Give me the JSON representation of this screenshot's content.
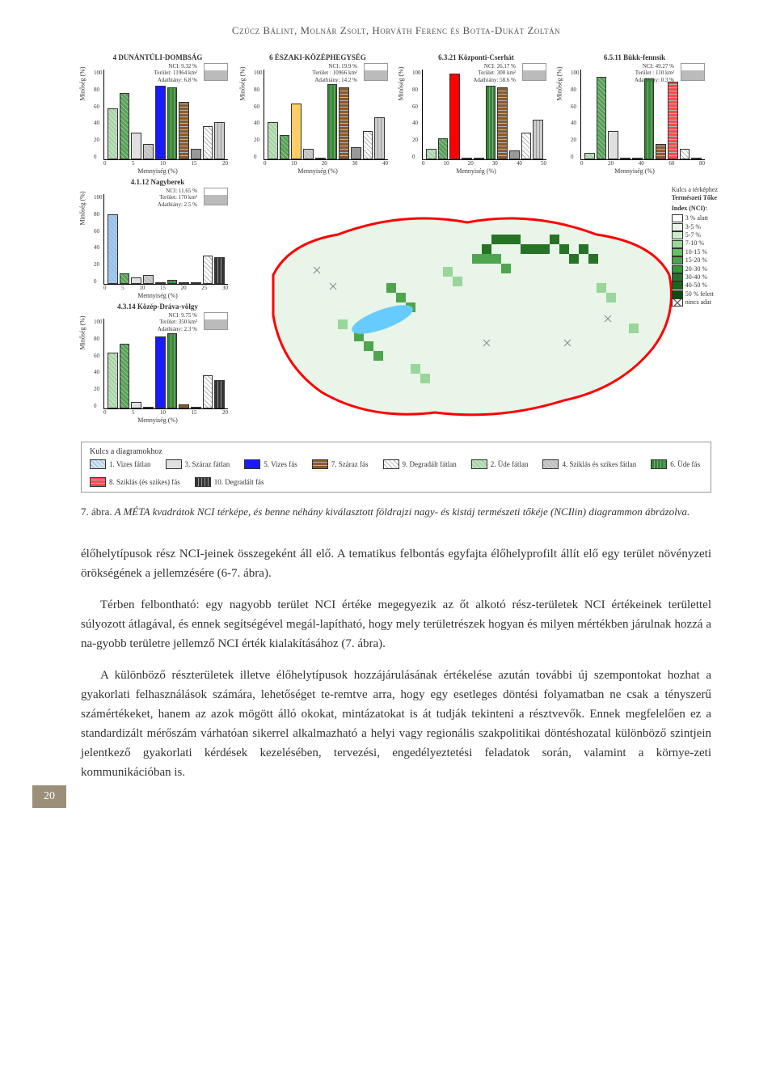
{
  "running_head": "Czúcz Bálint, Molnár Zsolt, Horváth Ferenc és Botta-Dukát Zoltán",
  "page_number": "20",
  "figure": {
    "charts": {
      "type": "bar",
      "ylabel": "Minőség (%)",
      "xlabel": "Mennyiség (%)",
      "ylim": [
        0,
        100
      ],
      "ytick_step": 20,
      "background_color": "#ffffff",
      "panels": [
        {
          "title": "4 DUNÁNTÚLI-DOMBSÁG",
          "nci": "NCI: 9.32 %",
          "terulet": "Terület: 11964 km²",
          "adath": "Adathiány: 6.8 %",
          "xlim": [
            0,
            20
          ],
          "xticks": [
            0,
            5,
            10,
            15,
            20
          ],
          "bars": [
            {
              "h": 55,
              "c": "#b3e6b3",
              "hatch": "diag"
            },
            {
              "h": 72,
              "c": "#4da64d",
              "hatch": "diag"
            },
            {
              "h": 28,
              "c": "#e0e0e0",
              "hatch": "none"
            },
            {
              "h": 15,
              "c": "#cccccc",
              "hatch": "diag"
            },
            {
              "h": 80,
              "c": "#1a1aff",
              "hatch": "none"
            },
            {
              "h": 78,
              "c": "#2e8b2e",
              "hatch": "vert"
            },
            {
              "h": 62,
              "c": "#8b5a2b",
              "hatch": "horiz"
            },
            {
              "h": 10,
              "c": "#999999",
              "hatch": "none"
            },
            {
              "h": 35,
              "c": "#ffffff",
              "hatch": "diag"
            },
            {
              "h": 40,
              "c": "#cccccc",
              "hatch": "vert"
            }
          ]
        },
        {
          "title": "6 ÉSZAKI-KÖZÉPHEGYSÉG",
          "nci": "NCI: 19.9 %",
          "terulet": "Terület : 10966 km²",
          "adath": "Adathiány: 14.2 %",
          "xlim": [
            0,
            40
          ],
          "xticks": [
            0,
            10,
            20,
            30,
            40
          ],
          "bars": [
            {
              "h": 40,
              "c": "#b3e6b3",
              "hatch": "diag"
            },
            {
              "h": 25,
              "c": "#4da64d",
              "hatch": "diag"
            },
            {
              "h": 60,
              "c": "#ffcc66",
              "hatch": "none"
            },
            {
              "h": 10,
              "c": "#cccccc",
              "hatch": "diag"
            },
            {
              "h": 0,
              "c": "#1a1aff",
              "hatch": "none"
            },
            {
              "h": 82,
              "c": "#2e8b2e",
              "hatch": "vert"
            },
            {
              "h": 78,
              "c": "#8b5a2b",
              "hatch": "horiz"
            },
            {
              "h": 12,
              "c": "#999999",
              "hatch": "none"
            },
            {
              "h": 30,
              "c": "#ffffff",
              "hatch": "diag"
            },
            {
              "h": 45,
              "c": "#cccccc",
              "hatch": "vert"
            }
          ]
        },
        {
          "title": "6.3.21 Központi-Cserhát",
          "nci": "NCI: 26.17 %",
          "terulet": "Terület: 300 km²",
          "adath": "Adathiány: 58.6 %",
          "xlim": [
            0,
            50
          ],
          "xticks": [
            0,
            10,
            20,
            30,
            40,
            50
          ],
          "bars": [
            {
              "h": 10,
              "c": "#b3e6b3",
              "hatch": "diag"
            },
            {
              "h": 22,
              "c": "#4da64d",
              "hatch": "diag"
            },
            {
              "h": 94,
              "c": "#ff0000",
              "hatch": "none"
            },
            {
              "h": 0,
              "c": "#cccccc",
              "hatch": "diag"
            },
            {
              "h": 0,
              "c": "#1a1aff",
              "hatch": "none"
            },
            {
              "h": 80,
              "c": "#2e8b2e",
              "hatch": "vert"
            },
            {
              "h": 78,
              "c": "#8b5a2b",
              "hatch": "horiz"
            },
            {
              "h": 8,
              "c": "#999999",
              "hatch": "none"
            },
            {
              "h": 28,
              "c": "#ffffff",
              "hatch": "diag"
            },
            {
              "h": 42,
              "c": "#cccccc",
              "hatch": "vert"
            }
          ]
        },
        {
          "title": "6.5.11 Bükk-fennsík",
          "nci": "NCI: 49.27 %",
          "terulet": "Terület : 110 km²",
          "adath": "Adathiány: 0.3 %",
          "xlim": [
            0,
            80
          ],
          "xticks": [
            0,
            20,
            40,
            60,
            80
          ],
          "bars": [
            {
              "h": 5,
              "c": "#b3e6b3",
              "hatch": "diag"
            },
            {
              "h": 90,
              "c": "#4da64d",
              "hatch": "diag"
            },
            {
              "h": 30,
              "c": "#e0e0e0",
              "hatch": "none"
            },
            {
              "h": 0,
              "c": "#cccccc",
              "hatch": "diag"
            },
            {
              "h": 0,
              "c": "#1a1aff",
              "hatch": "none"
            },
            {
              "h": 88,
              "c": "#2e8b2e",
              "hatch": "vert"
            },
            {
              "h": 15,
              "c": "#8b5a2b",
              "hatch": "horiz"
            },
            {
              "h": 85,
              "c": "#ff4d4d",
              "hatch": "horiz"
            },
            {
              "h": 10,
              "c": "#ffffff",
              "hatch": "diag"
            },
            {
              "h": 0,
              "c": "#cccccc",
              "hatch": "vert"
            }
          ]
        },
        {
          "title": "4.1.12 Nagyberek",
          "nci": "NCI: 11.65 %",
          "terulet": "Terület: 170 km²",
          "adath": "Adathiány: 2.5 %",
          "xlim": [
            0,
            30
          ],
          "xticks": [
            0,
            5,
            10,
            15,
            20,
            25,
            30
          ],
          "bars": [
            {
              "h": 76,
              "c": "#99ccff",
              "hatch": "diag"
            },
            {
              "h": 10,
              "c": "#4da64d",
              "hatch": "diag"
            },
            {
              "h": 5,
              "c": "#e0e0e0",
              "hatch": "none"
            },
            {
              "h": 8,
              "c": "#cccccc",
              "hatch": "diag"
            },
            {
              "h": 0,
              "c": "#1a1aff",
              "hatch": "none"
            },
            {
              "h": 3,
              "c": "#2e8b2e",
              "hatch": "vert"
            },
            {
              "h": 0,
              "c": "#8b5a2b",
              "hatch": "horiz"
            },
            {
              "h": 0,
              "c": "#999999",
              "hatch": "none"
            },
            {
              "h": 30,
              "c": "#ffffff",
              "hatch": "diag"
            },
            {
              "h": 28,
              "c": "#333333",
              "hatch": "vert"
            }
          ]
        },
        {
          "title": "4.3.14 Közép-Dráva-völgy",
          "nci": "NCI: 9.75 %",
          "terulet": "Terület: 350 km²",
          "adath": "Adathiány: 2.3 %",
          "xlim": [
            0,
            20
          ],
          "xticks": [
            0,
            5,
            10,
            15,
            20
          ],
          "bars": [
            {
              "h": 60,
              "c": "#b3e6b3",
              "hatch": "diag"
            },
            {
              "h": 70,
              "c": "#4da64d",
              "hatch": "diag"
            },
            {
              "h": 5,
              "c": "#e0e0e0",
              "hatch": "none"
            },
            {
              "h": 0,
              "c": "#cccccc",
              "hatch": "diag"
            },
            {
              "h": 78,
              "c": "#1a1aff",
              "hatch": "none"
            },
            {
              "h": 82,
              "c": "#2e8b2e",
              "hatch": "vert"
            },
            {
              "h": 3,
              "c": "#8b5a2b",
              "hatch": "horiz"
            },
            {
              "h": 0,
              "c": "#999999",
              "hatch": "none"
            },
            {
              "h": 35,
              "c": "#ffffff",
              "hatch": "diag"
            },
            {
              "h": 30,
              "c": "#333333",
              "hatch": "vert"
            }
          ]
        }
      ]
    },
    "map": {
      "title_line1": "Kulcs a térképhez",
      "title_line2": "Természeti Tőke",
      "title_line3": "Index (NCI):",
      "border_color": "#ff0000",
      "water_color": "#66ccff",
      "categories": [
        {
          "label": "3 % alatt",
          "color": "#ffffff"
        },
        {
          "label": "3-5 %",
          "color": "#e8f5e8"
        },
        {
          "label": "5-7 %",
          "color": "#ccebcc"
        },
        {
          "label": "7-10 %",
          "color": "#99d699"
        },
        {
          "label": "10-15 %",
          "color": "#66c266"
        },
        {
          "label": "15-20 %",
          "color": "#4da64d"
        },
        {
          "label": "20-30 %",
          "color": "#339933"
        },
        {
          "label": "30-40 %",
          "color": "#267326"
        },
        {
          "label": "40-50 %",
          "color": "#1a661a"
        },
        {
          "label": "50 % felett",
          "color": "#0d4d0d"
        },
        {
          "label": "nincs adat",
          "color": "#ffffff",
          "cross": true
        }
      ]
    },
    "diagram_legend": {
      "title": "Kulcs a diagramokhoz",
      "items": [
        {
          "n": "1. Vizes fátlan",
          "c": "#cce6ff",
          "hatch": "diag"
        },
        {
          "n": "3. Száraz fátlan",
          "c": "#e0e0e0",
          "hatch": "none"
        },
        {
          "n": "5. Vizes fás",
          "c": "#1a1aff",
          "hatch": "none"
        },
        {
          "n": "7. Száraz fás",
          "c": "#8b5a2b",
          "hatch": "horiz"
        },
        {
          "n": "9. Degradált fátlan",
          "c": "#ffffff",
          "hatch": "diag"
        },
        {
          "n": "2. Üde fátlan",
          "c": "#b3e6b3",
          "hatch": "diag"
        },
        {
          "n": "4. Sziklás és szikes fátlan",
          "c": "#cccccc",
          "hatch": "diag"
        },
        {
          "n": "6. Üde fás",
          "c": "#2e8b2e",
          "hatch": "vert"
        },
        {
          "n": "8. Sziklás (és szikes) fás",
          "c": "#ff4d4d",
          "hatch": "horiz"
        },
        {
          "n": "10. Degradált fás",
          "c": "#333333",
          "hatch": "vert"
        }
      ]
    }
  },
  "caption": {
    "num": "7. ábra.",
    "text": " A MÉTA kvadrátok NCI térképe, és benne néhány kiválasztott földrajzi nagy- és kistáj természeti tőkéje (NCIlin) diagrammon ábrázolva."
  },
  "para1": "élőhelytípusok rész NCI-jeinek összegeként áll elő. A tematikus felbontás egyfajta élőhelyprofilt állít elő egy terület növényzeti örökségének a jellemzésére (6-7. ábra).",
  "para2": "Térben felbontható: egy nagyobb terület NCI értéke megegyezik az őt alkotó rész-területek NCI értékeinek területtel súlyozott átlagával, és ennek segítségével megál-lapítható, hogy mely területrészek hogyan és milyen mértékben járulnak hozzá a na-gyobb területre jellemző NCI érték kialakításához (7. ábra).",
  "para3": "A különböző részterületek illetve élőhelytípusok hozzájárulásának értékelése azután további új szempontokat hozhat a gyakorlati felhasználások számára, lehetőséget te-remtve arra, hogy egy esetleges döntési folyamatban ne csak a tényszerű számértékeket, hanem az azok mögött álló okokat, mintázatokat is át tudják tekinteni a résztvevők. Ennek megfelelően ez a standardizált mérőszám várhatóan sikerrel alkalmazható a helyi vagy regionális szakpolitikai döntéshozatal különböző szintjein jelentkező gyakorlati kérdések kezelésében, tervezési, engedélyeztetési feladatok során, valamint a környe-zeti kommunikációban is."
}
